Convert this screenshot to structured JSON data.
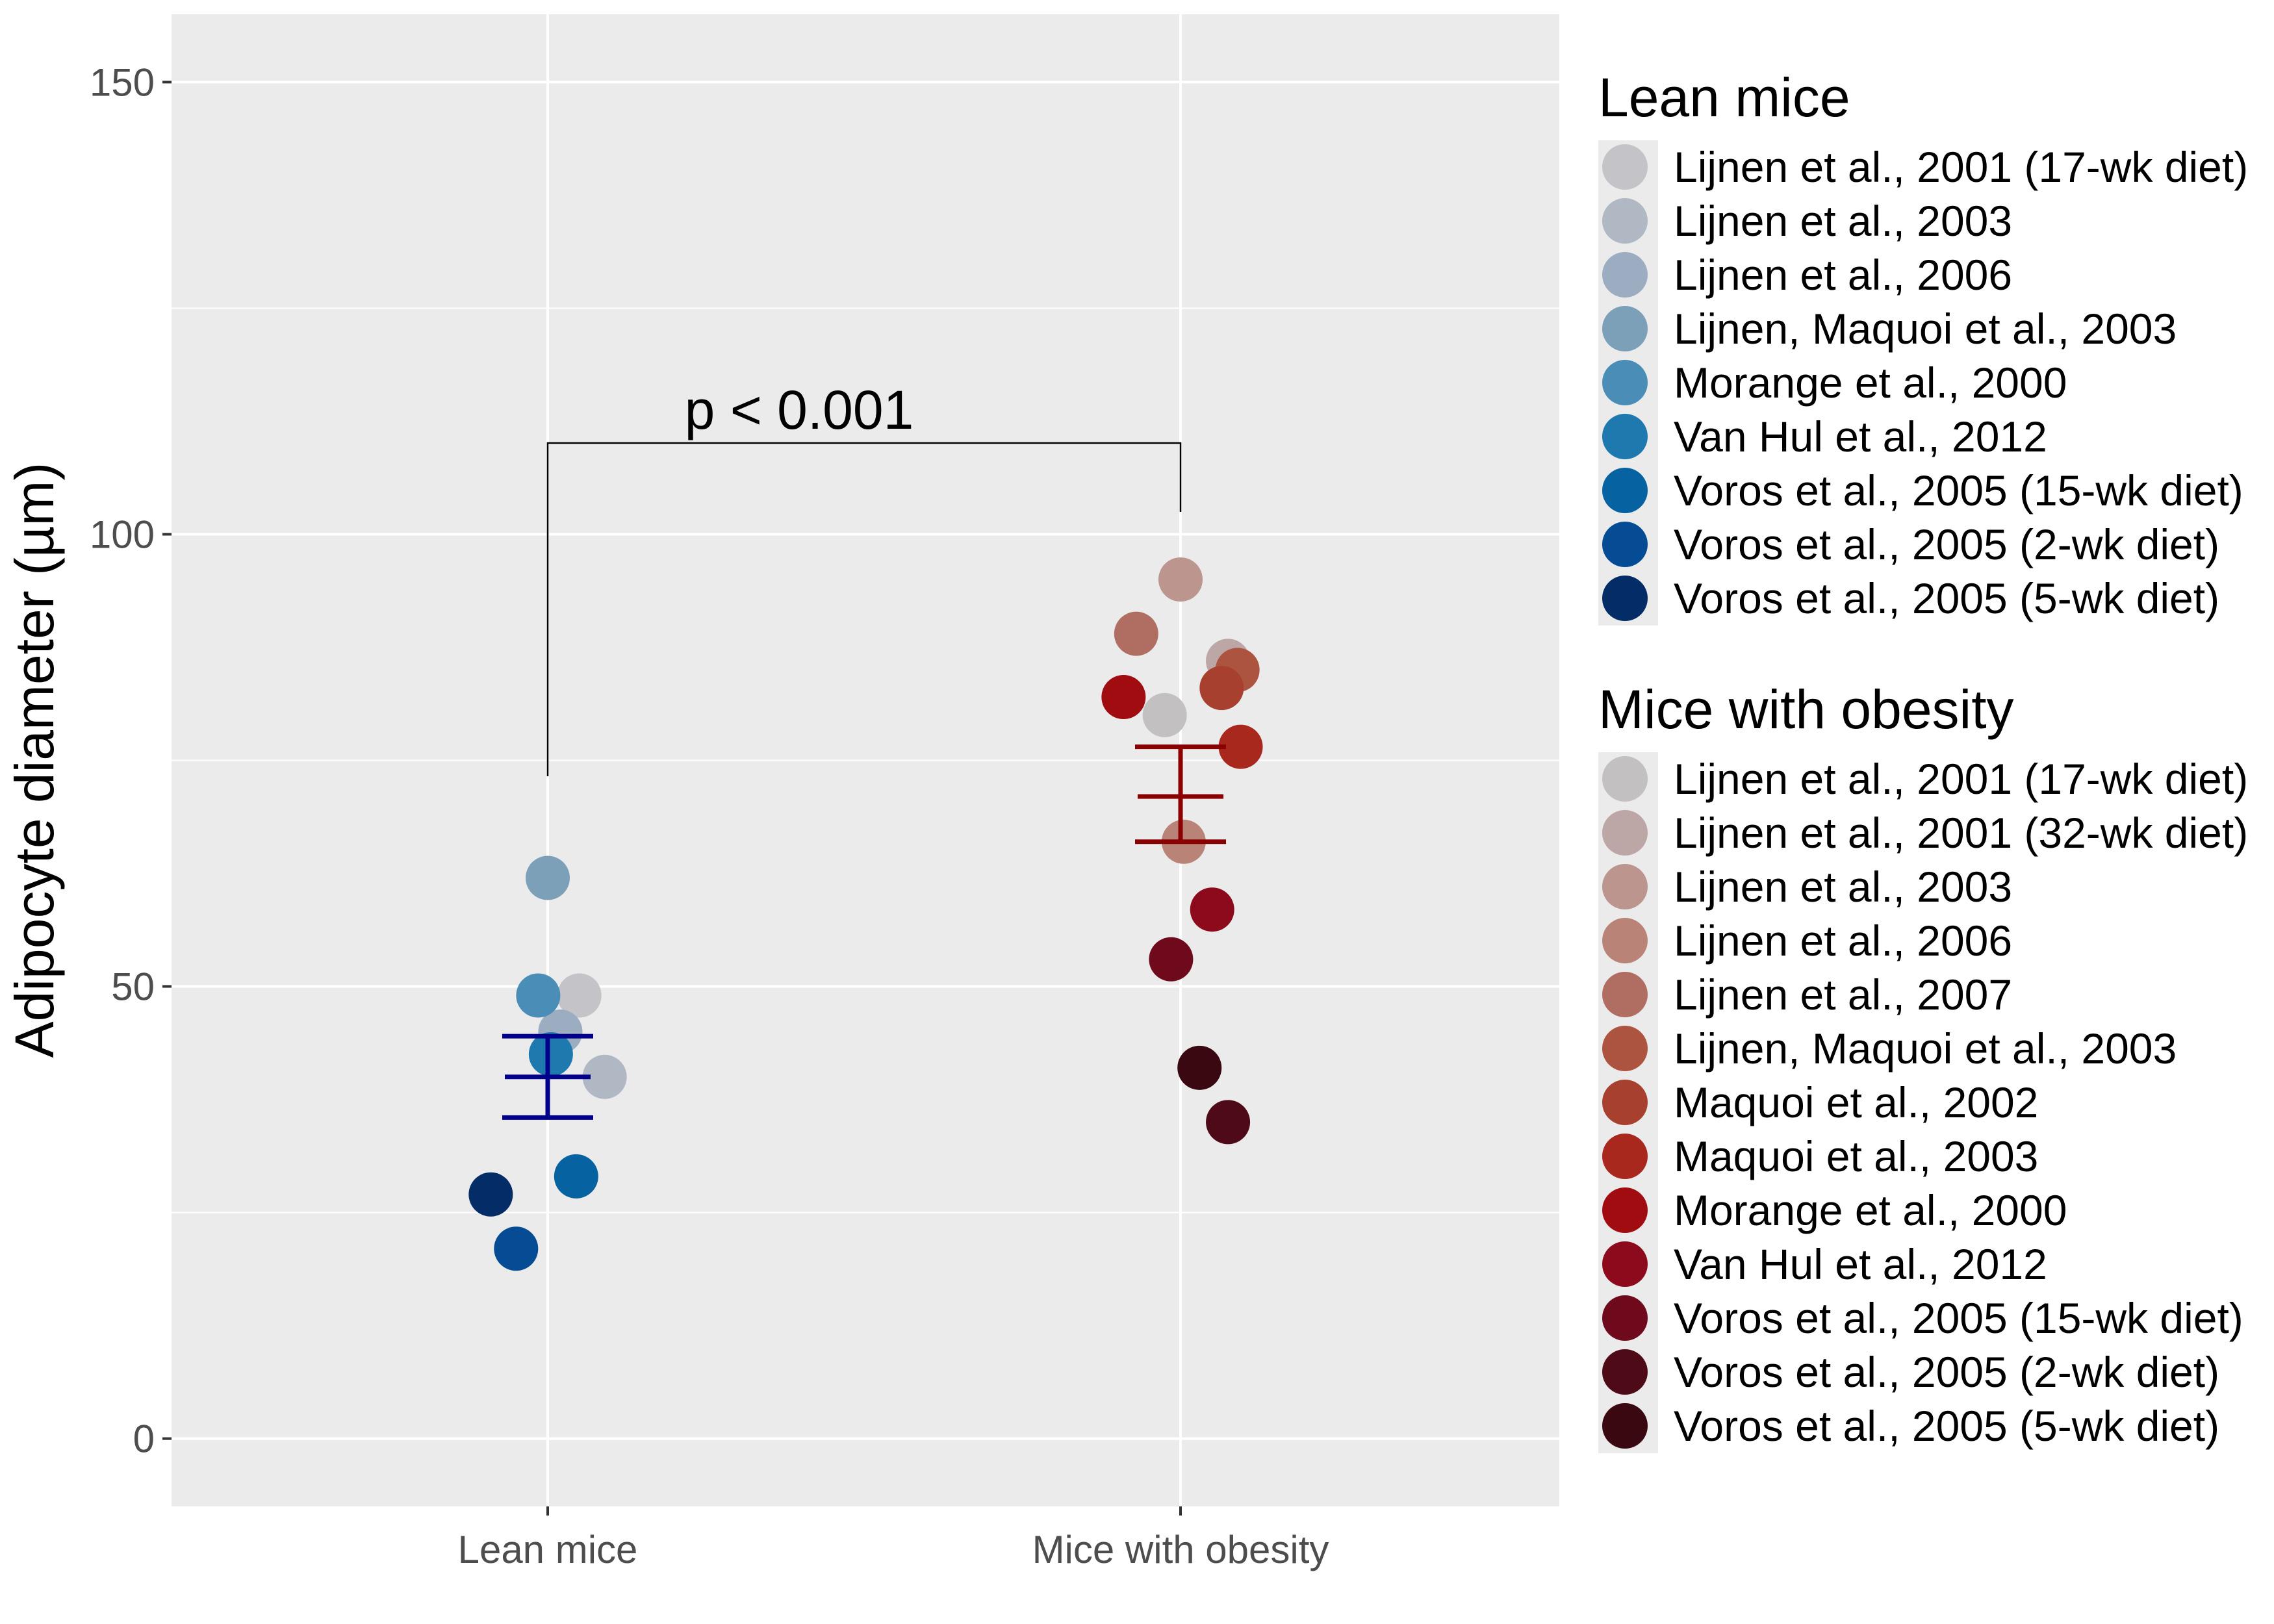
{
  "chart_data": {
    "type": "scatter",
    "ylabel": "Adipocyte diameter (µm)",
    "xlabel": "",
    "ylim": [
      -7.5,
      157.5
    ],
    "yticks": [
      0,
      50,
      100,
      150
    ],
    "categories": [
      "Lean mice",
      "Mice with obesity"
    ],
    "grid": true,
    "legend_placement": "right",
    "annotation": {
      "text": "p < 0.001",
      "from": "Lean mice",
      "to": "Mice with obesity"
    },
    "groups": [
      {
        "name": "Lean mice",
        "summary": {
          "mean": 40,
          "upper": 44.5,
          "lower": 35.5,
          "color": "#00008B"
        },
        "points": [
          {
            "series": "Lijnen et al., 2001 (17-wk diet)",
            "y": 49,
            "jitter": 0.05,
            "color": "#C4C4C8"
          },
          {
            "series": "Lijnen et al., 2003",
            "y": 40,
            "jitter": 0.09,
            "color": "#B0B8C4"
          },
          {
            "series": "Lijnen et al., 2006",
            "y": 45,
            "jitter": 0.02,
            "color": "#9CADC2"
          },
          {
            "series": "Lijnen, Maquoi et al., 2003",
            "y": 62,
            "jitter": 0.0,
            "color": "#7BA0B8"
          },
          {
            "series": "Morange et al., 2000",
            "y": 49,
            "jitter": -0.015,
            "color": "#4A8DB6"
          },
          {
            "series": "Van Hul et al., 2012",
            "y": 42.5,
            "jitter": 0.005,
            "color": "#1E7AAE"
          },
          {
            "series": "Voros et al., 2005 (15-wk diet)",
            "y": 29,
            "jitter": 0.045,
            "color": "#0662A0"
          },
          {
            "series": "Voros et al., 2005 (2-wk diet)",
            "y": 21,
            "jitter": -0.05,
            "color": "#054C94"
          },
          {
            "series": "Voros et al., 2005 (5-wk diet)",
            "y": 27,
            "jitter": -0.09,
            "color": "#042C66"
          }
        ]
      },
      {
        "name": "Mice with obesity",
        "summary": {
          "mean": 71,
          "upper": 76.5,
          "lower": 66,
          "color": "#8B0000"
        },
        "points": [
          {
            "series": "Lijnen et al., 2001 (17-wk diet)",
            "y": 80,
            "jitter": -0.025,
            "color": "#C2C0C0"
          },
          {
            "series": "Lijnen et al., 2001 (32-wk diet)",
            "y": 86,
            "jitter": 0.075,
            "color": "#BDA6A6"
          },
          {
            "series": "Lijnen et al., 2003",
            "y": 95,
            "jitter": 0.0,
            "color": "#BC968E"
          },
          {
            "series": "Lijnen et al., 2006",
            "y": 66,
            "jitter": 0.005,
            "color": "#B98377"
          },
          {
            "series": "Lijnen et al., 2007",
            "y": 89,
            "jitter": -0.07,
            "color": "#B06E62"
          },
          {
            "series": "Lijnen, Maquoi et al., 2003",
            "y": 85,
            "jitter": 0.09,
            "color": "#AC5440"
          },
          {
            "series": "Maquoi et al., 2002",
            "y": 83,
            "jitter": 0.065,
            "color": "#A84030"
          },
          {
            "series": "Maquoi et al., 2003",
            "y": 76.5,
            "jitter": 0.095,
            "color": "#A8281E"
          },
          {
            "series": "Morange et al., 2000",
            "y": 82,
            "jitter": -0.09,
            "color": "#A00C10"
          },
          {
            "series": "Van Hul et al., 2012",
            "y": 58.5,
            "jitter": 0.05,
            "color": "#8C0A1C"
          },
          {
            "series": "Voros et al., 2005 (15-wk diet)",
            "y": 53,
            "jitter": -0.015,
            "color": "#6E0A1C"
          },
          {
            "series": "Voros et al., 2005 (2-wk diet)",
            "y": 35,
            "jitter": 0.075,
            "color": "#4E0A16"
          },
          {
            "series": "Voros et al., 2005 (5-wk diet)",
            "y": 41,
            "jitter": 0.03,
            "color": "#3A0810"
          }
        ]
      }
    ]
  },
  "legend": {
    "lean": {
      "title": "Lean mice",
      "items": [
        {
          "label": "Lijnen et al., 2001 (17-wk diet)",
          "color": "#C4C4C8"
        },
        {
          "label": "Lijnen et al., 2003",
          "color": "#B0B8C4"
        },
        {
          "label": "Lijnen et al., 2006",
          "color": "#9CADC2"
        },
        {
          "label": "Lijnen, Maquoi et al., 2003",
          "color": "#7BA0B8"
        },
        {
          "label": "Morange et al., 2000",
          "color": "#4A8DB6"
        },
        {
          "label": "Van Hul et al., 2012",
          "color": "#1E7AAE"
        },
        {
          "label": "Voros et al., 2005 (15-wk diet)",
          "color": "#0662A0"
        },
        {
          "label": "Voros et al., 2005 (2-wk diet)",
          "color": "#054C94"
        },
        {
          "label": "Voros et al., 2005 (5-wk diet)",
          "color": "#042C66"
        }
      ]
    },
    "obese": {
      "title": "Mice with obesity",
      "items": [
        {
          "label": "Lijnen et al., 2001 (17-wk diet)",
          "color": "#C2C0C0"
        },
        {
          "label": "Lijnen et al., 2001 (32-wk diet)",
          "color": "#BDA6A6"
        },
        {
          "label": "Lijnen et al., 2003",
          "color": "#BC968E"
        },
        {
          "label": "Lijnen et al., 2006",
          "color": "#B98377"
        },
        {
          "label": "Lijnen et al., 2007",
          "color": "#B06E62"
        },
        {
          "label": "Lijnen, Maquoi et al., 2003",
          "color": "#AC5440"
        },
        {
          "label": "Maquoi et al., 2002",
          "color": "#A84030"
        },
        {
          "label": "Maquoi et al., 2003",
          "color": "#A8281E"
        },
        {
          "label": "Morange et al., 2000",
          "color": "#A00C10"
        },
        {
          "label": "Van Hul et al., 2012",
          "color": "#8C0A1C"
        },
        {
          "label": "Voros et al., 2005 (15-wk diet)",
          "color": "#6E0A1C"
        },
        {
          "label": "Voros et al., 2005 (2-wk diet)",
          "color": "#4E0A16"
        },
        {
          "label": "Voros et al., 2005 (5-wk diet)",
          "color": "#3A0810"
        }
      ]
    }
  }
}
